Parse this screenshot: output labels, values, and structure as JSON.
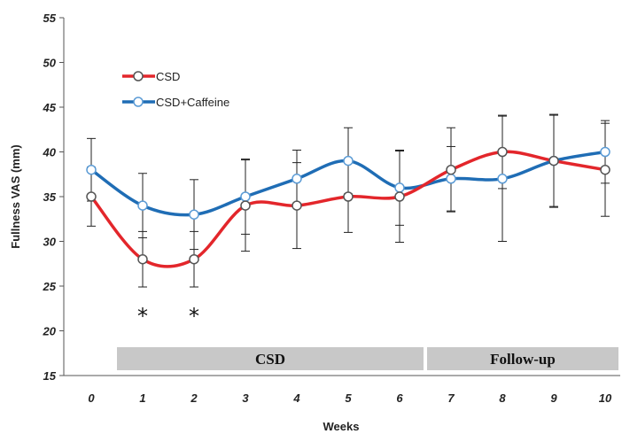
{
  "chart_data": {
    "type": "line",
    "xlabel": "Weeks",
    "ylabel": "Fullness VAS (mm)",
    "x": [
      0,
      1,
      2,
      3,
      4,
      5,
      6,
      7,
      8,
      9,
      10
    ],
    "x_tick_labels": [
      "0",
      "1",
      "2",
      "3",
      "4",
      "5",
      "6",
      "7",
      "8",
      "9",
      "10"
    ],
    "ylim": [
      15,
      55
    ],
    "y_ticks": [
      15,
      20,
      25,
      30,
      35,
      40,
      45,
      50,
      55
    ],
    "grid": false,
    "legend_position": "top-left",
    "series": [
      {
        "name": "CSD",
        "color": "#e3262b",
        "values": [
          35,
          28,
          28,
          34,
          34,
          35,
          35,
          38,
          40,
          39,
          38
        ],
        "error": [
          3.3,
          3.1,
          3.1,
          5.1,
          4.8,
          4.0,
          5.1,
          4.7,
          4.1,
          5.1,
          5.2
        ]
      },
      {
        "name": "CSD+Caffeine",
        "color": "#1f6db5",
        "values": [
          38,
          34,
          33,
          35,
          37,
          39,
          36,
          37,
          37,
          39,
          40
        ],
        "error": [
          3.5,
          3.6,
          3.9,
          4.2,
          3.2,
          3.7,
          4.2,
          3.6,
          7.0,
          5.2,
          3.5
        ]
      }
    ],
    "significance": [
      {
        "x": 1,
        "label": "*"
      },
      {
        "x": 2,
        "label": "*"
      }
    ],
    "phases": [
      {
        "label": "CSD",
        "from": 0.5,
        "to": 6.5
      },
      {
        "label": "Follow-up",
        "from": 6.5,
        "to": 10.5
      }
    ]
  }
}
